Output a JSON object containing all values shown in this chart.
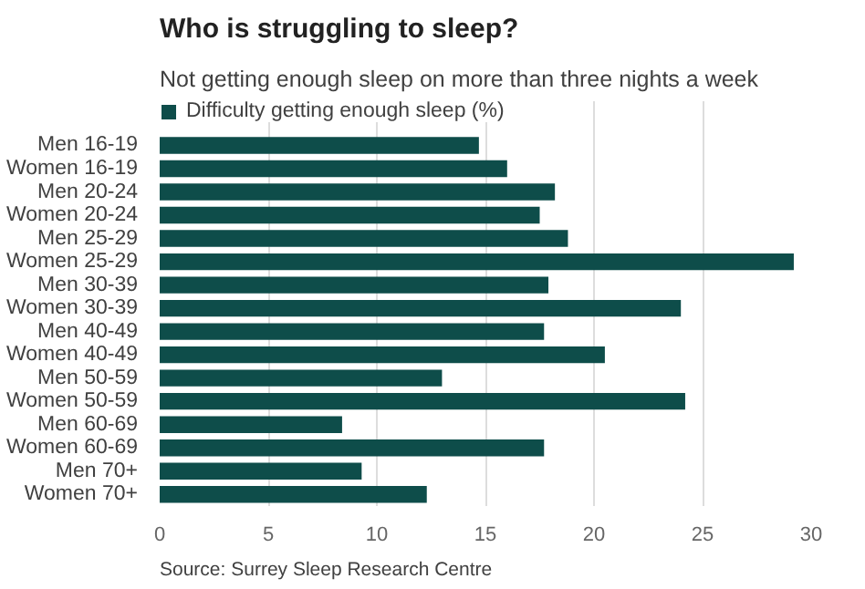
{
  "chart_data": {
    "type": "bar",
    "orientation": "horizontal",
    "title": "Who is struggling to sleep?",
    "subtitle": "Not getting enough sleep on more than three nights a week",
    "categories": [
      "Men 16-19",
      "Women 16-19",
      "Men 20-24",
      "Women 20-24",
      "Men 25-29",
      "Women 25-29",
      "Men 30-39",
      "Women 30-39",
      "Men 40-49",
      "Women 40-49",
      "Men 50-59",
      "Women 50-59",
      "Men 60-69",
      "Women 60-69",
      "Men 70+",
      "Women 70+"
    ],
    "series": [
      {
        "name": "Difficulty getting enough sleep (%)",
        "color": "#0e4d4a",
        "values": [
          14.7,
          16.0,
          18.2,
          17.5,
          18.8,
          29.2,
          17.9,
          24.0,
          17.7,
          20.5,
          13.0,
          24.2,
          8.4,
          17.7,
          9.3,
          12.3
        ]
      }
    ],
    "xlim": [
      0,
      30
    ],
    "xticks": [
      0,
      5,
      10,
      15,
      20,
      25,
      30
    ],
    "grid": "x",
    "legend": "top left",
    "annotations": [
      "Source: Surrey Sleep Research Centre"
    ]
  }
}
